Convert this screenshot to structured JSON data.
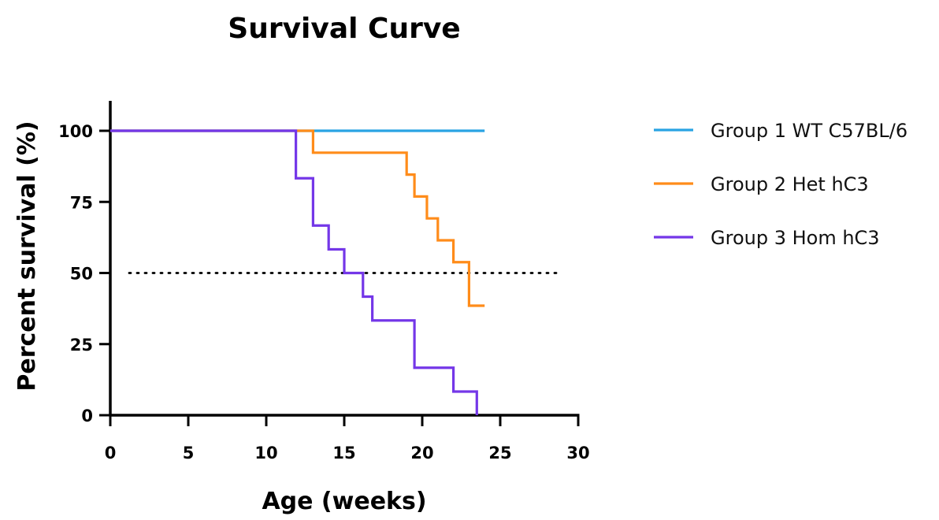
{
  "chart_data": {
    "type": "line",
    "title": "Survival Curve",
    "xlabel": "Age (weeks)",
    "ylabel": "Percent survival (%)",
    "xlim": [
      0,
      30
    ],
    "ylim": [
      0,
      100
    ],
    "xticks": [
      0,
      5,
      10,
      15,
      20,
      25,
      30
    ],
    "yticks": [
      0,
      25,
      50,
      75,
      100
    ],
    "grid": false,
    "legend_position": "right",
    "reference_line": {
      "y": 50,
      "x_range": [
        0,
        29.5
      ],
      "style": "dotted",
      "color": "#000000"
    },
    "series": [
      {
        "name": "Group 1 WT C57BL/6",
        "color": "#29a3e3",
        "steps": [
          [
            0,
            100
          ],
          [
            24,
            100
          ]
        ]
      },
      {
        "name": "Group 2 Het hC3",
        "color": "#ff8c1a",
        "steps": [
          [
            0,
            100
          ],
          [
            13,
            92.3
          ],
          [
            19,
            84.6
          ],
          [
            19.5,
            76.9
          ],
          [
            20.3,
            69.2
          ],
          [
            21,
            61.5
          ],
          [
            22,
            53.8
          ],
          [
            23,
            38.5
          ],
          [
            24,
            38.5
          ]
        ]
      },
      {
        "name": "Group 3 Hom hC3",
        "color": "#7437e8",
        "steps": [
          [
            0,
            100
          ],
          [
            11.9,
            83.3
          ],
          [
            13,
            66.7
          ],
          [
            14,
            58.3
          ],
          [
            15,
            50
          ],
          [
            16.2,
            41.7
          ],
          [
            16.8,
            33.3
          ],
          [
            19.5,
            16.7
          ],
          [
            22,
            8.3
          ],
          [
            23.5,
            0
          ]
        ]
      }
    ]
  }
}
